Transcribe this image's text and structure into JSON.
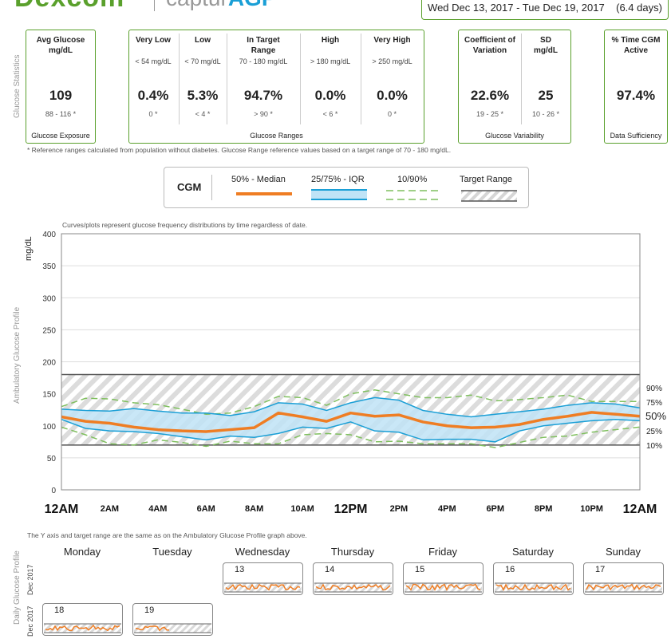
{
  "header": {
    "brand": "Dexcom",
    "product_prefix": "captur",
    "product_suffix": "AGP",
    "date_range": "Wed Dec 13, 2017 - Tue Dec 19, 2017",
    "days": "(6.4 days)"
  },
  "stats": {
    "side_label": "Glucose Statistics",
    "avg": {
      "title": "Avg Glucose",
      "unit": "mg/dL",
      "value": "109",
      "range": "88 - 116 *",
      "caption": "Glucose Exposure"
    },
    "ranges": {
      "caption": "Glucose Ranges",
      "cols": [
        {
          "title": "Very Low",
          "sub": "< 54 mg/dL",
          "value": "0.4%",
          "ref": "0 *"
        },
        {
          "title": "Low",
          "sub": "< 70 mg/dL",
          "value": "5.3%",
          "ref": "< 4 *"
        },
        {
          "title": "In Target Range",
          "sub": "70 - 180 mg/dL",
          "value": "94.7%",
          "ref": "> 90 *"
        },
        {
          "title": "High",
          "sub": "> 180 mg/dL",
          "value": "0.0%",
          "ref": "< 6 *"
        },
        {
          "title": "Very High",
          "sub": "> 250 mg/dL",
          "value": "0.0%",
          "ref": "0 *"
        }
      ]
    },
    "variability": {
      "caption": "Glucose Variability",
      "cols": [
        {
          "title": "Coefficient of Variation",
          "value": "22.6%",
          "ref": "19 - 25 *"
        },
        {
          "title": "SD mg/dL",
          "value": "25",
          "ref": "10 - 26 *"
        }
      ]
    },
    "sufficiency": {
      "title": "% Time CGM Active",
      "value": "97.4%",
      "caption": "Data Sufficiency"
    },
    "footnote": "* Reference ranges calculated from population without diabetes. Glucose Range reference values based on a target range of 70 - 180 mg/dL."
  },
  "legend": {
    "title": "CGM",
    "median": "50% - Median",
    "iqr": "25/75% - IQR",
    "p10_90": "10/90%",
    "target": "Target Range"
  },
  "agp": {
    "side_label": "Ambulatory Glucose Profile",
    "note": "Curves/plots represent glucose frequency distributions by time regardless of date.",
    "ylabel": "mg/dL",
    "pct_labels": [
      "90%",
      "75%",
      "50%",
      "25%",
      "10%"
    ]
  },
  "chart_data": {
    "type": "line",
    "ylim": [
      0,
      400
    ],
    "yticks": [
      0,
      50,
      100,
      150,
      200,
      250,
      300,
      350,
      400
    ],
    "xticks": [
      "12AM",
      "2AM",
      "4AM",
      "6AM",
      "8AM",
      "10AM",
      "12PM",
      "2PM",
      "4PM",
      "6PM",
      "8PM",
      "10PM",
      "12AM"
    ],
    "target_range": [
      70,
      180
    ],
    "x_hours": [
      0,
      1,
      2,
      3,
      4,
      5,
      6,
      7,
      8,
      9,
      10,
      11,
      12,
      13,
      14,
      15,
      16,
      17,
      18,
      19,
      20,
      21,
      22,
      23,
      24
    ],
    "series": [
      {
        "name": "90%",
        "values": [
          130,
          143,
          142,
          136,
          133,
          126,
          118,
          120,
          130,
          146,
          144,
          132,
          150,
          156,
          150,
          144,
          144,
          148,
          139,
          141,
          144,
          148,
          138,
          138,
          138
        ]
      },
      {
        "name": "75%",
        "values": [
          126,
          124,
          123,
          127,
          123,
          120,
          120,
          116,
          122,
          136,
          134,
          124,
          136,
          144,
          140,
          124,
          118,
          114,
          118,
          122,
          126,
          132,
          136,
          134,
          128
        ]
      },
      {
        "name": "50%",
        "values": [
          114,
          107,
          104,
          98,
          94,
          92,
          91,
          94,
          97,
          120,
          114,
          107,
          120,
          115,
          117,
          106,
          100,
          97,
          98,
          102,
          110,
          115,
          121,
          118,
          115
        ]
      },
      {
        "name": "25%",
        "values": [
          110,
          96,
          92,
          91,
          88,
          83,
          78,
          84,
          82,
          88,
          98,
          96,
          106,
          92,
          90,
          78,
          79,
          79,
          75,
          92,
          100,
          104,
          108,
          110,
          108
        ]
      },
      {
        "name": "10%",
        "values": [
          98,
          86,
          72,
          70,
          78,
          74,
          68,
          76,
          72,
          72,
          86,
          88,
          86,
          75,
          76,
          72,
          72,
          72,
          66,
          74,
          82,
          84,
          90,
          94,
          98
        ]
      }
    ]
  },
  "daily": {
    "side_label": "Daily Glucose Profile",
    "month_label": "Dec 2017",
    "note": "The Y axis and target range are the same as on the Ambulatory Glucose Profile graph above.",
    "weekdays": [
      "Monday",
      "Tuesday",
      "Wednesday",
      "Thursday",
      "Friday",
      "Saturday",
      "Sunday"
    ],
    "week1": [
      {
        "col": 2,
        "date": "13"
      },
      {
        "col": 3,
        "date": "14"
      },
      {
        "col": 4,
        "date": "15"
      },
      {
        "col": 5,
        "date": "16"
      },
      {
        "col": 6,
        "date": "17"
      }
    ],
    "week2": [
      {
        "col": 0,
        "date": "18"
      },
      {
        "col": 1,
        "date": "19"
      }
    ]
  },
  "colors": {
    "green": "#5aa02c",
    "orange": "#ef7d23",
    "blue": "#1a9fd6",
    "iqr_fill": "#bfe3f6",
    "dash": "#7fbf5e"
  }
}
